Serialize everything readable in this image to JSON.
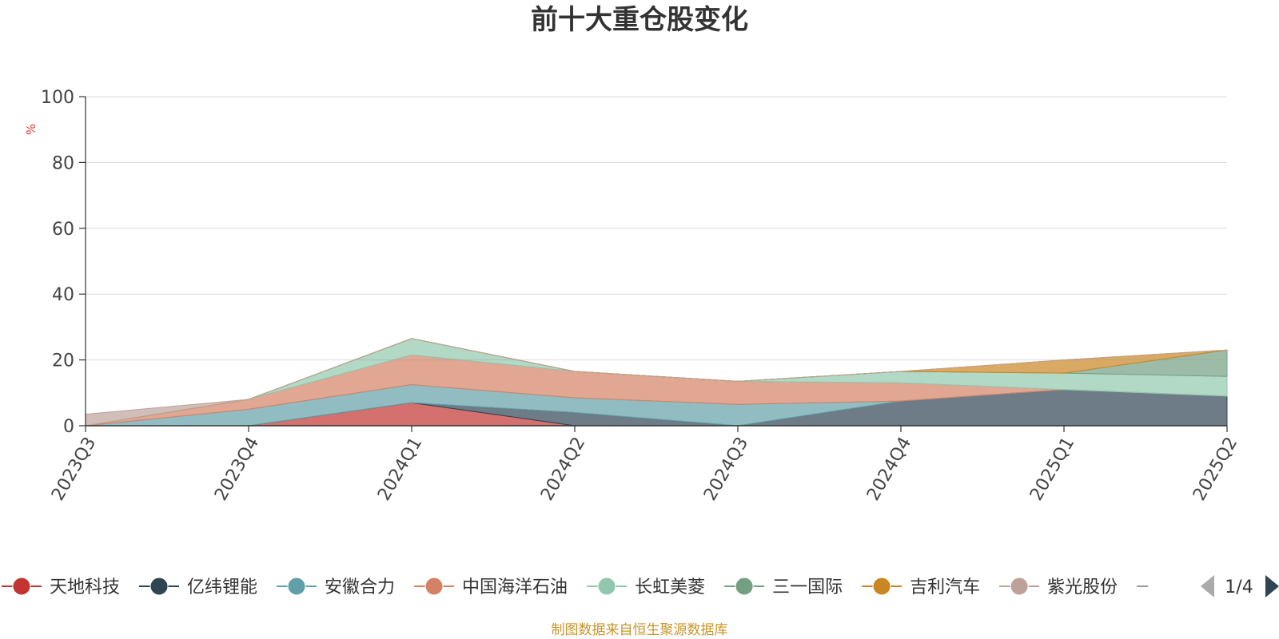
{
  "chart_data": {
    "type": "area",
    "title": "前十大重仓股变化",
    "ylabel": "%",
    "ylim": [
      0,
      100
    ],
    "yticks": [
      "0",
      "20",
      "40",
      "60",
      "80",
      "100"
    ],
    "categories": [
      "2023Q3",
      "2023Q4",
      "2024Q1",
      "2024Q2",
      "2024Q3",
      "2024Q4",
      "2025Q1",
      "2025Q2"
    ],
    "stacked": true,
    "grid": true,
    "legend_position": "bottom",
    "series": [
      {
        "name": "天地科技",
        "color": "#c23531",
        "values": [
          0,
          0,
          7,
          0,
          0,
          0,
          0,
          0
        ]
      },
      {
        "name": "亿纬锂能",
        "color": "#2f4554",
        "values": [
          0,
          0,
          0,
          4,
          0,
          7.5,
          11,
          9
        ]
      },
      {
        "name": "安徽合力",
        "color": "#61a0a8",
        "values": [
          0,
          5,
          5.5,
          4.5,
          6.5,
          0,
          0,
          0
        ]
      },
      {
        "name": "中国海洋石油",
        "color": "#d48265",
        "values": [
          0,
          3,
          9,
          8,
          7,
          5.5,
          0,
          0
        ]
      },
      {
        "name": "长虹美菱",
        "color": "#91c7ae",
        "values": [
          0,
          0,
          5,
          0,
          0,
          3.5,
          5,
          6
        ]
      },
      {
        "name": "三一国际",
        "color": "#749f83",
        "values": [
          0,
          0,
          0,
          0,
          0,
          0,
          0,
          8
        ]
      },
      {
        "name": "吉利汽车",
        "color": "#ca8622",
        "values": [
          0,
          0,
          0,
          0,
          0,
          0,
          4,
          0
        ]
      },
      {
        "name": "紫光股份",
        "color": "#bda29a",
        "values": [
          3.5,
          0,
          0,
          0,
          0,
          0,
          0,
          0
        ]
      }
    ]
  },
  "legend": {
    "items": [
      {
        "label": "天地科技",
        "color": "#c23531"
      },
      {
        "label": "亿纬锂能",
        "color": "#2f4554"
      },
      {
        "label": "安徽合力",
        "color": "#61a0a8"
      },
      {
        "label": "中国海洋石油",
        "color": "#d48265"
      },
      {
        "label": "长虹美菱",
        "color": "#91c7ae"
      },
      {
        "label": "三一国际",
        "color": "#749f83"
      },
      {
        "label": "吉利汽车",
        "color": "#ca8622"
      },
      {
        "label": "紫光股份",
        "color": "#bda29a"
      }
    ],
    "page_indicator": "1/4"
  },
  "footer": {
    "source": "制图数据来自恒生聚源数据库"
  }
}
